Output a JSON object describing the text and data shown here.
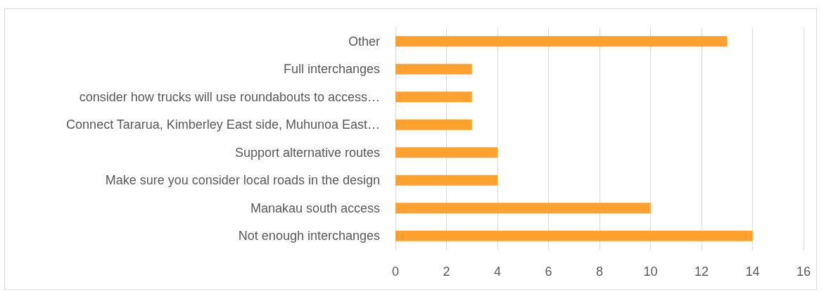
{
  "chart_data": {
    "type": "bar",
    "orientation": "horizontal",
    "categories": [
      "Other",
      "Full interchanges",
      "consider how trucks will use roundabouts to access…",
      "Connect Tararua, Kimberley East side, Muhunoa East…",
      "Support alternative routes",
      "Make sure you consider local roads in the design",
      "Manakau south access",
      "Not enough interchanges"
    ],
    "values": [
      13,
      3,
      3,
      3,
      4,
      4,
      10,
      14
    ],
    "color": "#ffa12f",
    "xlim": [
      0,
      16
    ],
    "xticks": [
      0,
      2,
      4,
      6,
      8,
      10,
      12,
      14,
      16
    ],
    "grid": "x"
  }
}
